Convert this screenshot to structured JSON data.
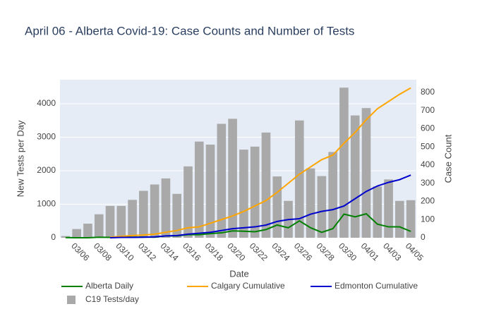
{
  "chart_data": {
    "type": "bar",
    "title": "April 06 - Alberta Covid-19: Case Counts and Number of Tests",
    "x_label": "Date",
    "y_label": "New Tests per Day",
    "y2_label": "Case Count",
    "categories": [
      null,
      "03/06",
      null,
      "03/08",
      null,
      "03/10",
      null,
      "03/12",
      null,
      "03/14",
      null,
      "03/16",
      null,
      "03/18",
      null,
      "03/20",
      null,
      "03/22",
      null,
      "03/24",
      null,
      "03/26",
      null,
      "03/28",
      null,
      "03/30",
      null,
      "04/01",
      null,
      "04/03",
      null,
      "04/05"
    ],
    "series": [
      {
        "name": "Alberta Daily",
        "type": "line",
        "axis": "y2",
        "color": "#008000",
        "values": [
          1,
          0,
          0,
          3,
          2,
          5,
          3,
          4,
          3,
          10,
          10,
          17,
          17,
          23,
          27,
          38,
          36,
          33,
          45,
          70,
          55,
          93,
          55,
          30,
          50,
          130,
          115,
          132,
          75,
          60,
          60,
          35
        ]
      },
      {
        "name": "Calgary Cumulative",
        "type": "line",
        "axis": "y2",
        "color": "#ffa500",
        "values": [
          null,
          null,
          null,
          null,
          3,
          8,
          12,
          15,
          20,
          30,
          40,
          55,
          60,
          80,
          100,
          120,
          145,
          175,
          205,
          250,
          300,
          350,
          390,
          430,
          455,
          520,
          580,
          650,
          710,
          750,
          790,
          825
        ]
      },
      {
        "name": "Edmonton Cumulative",
        "type": "line",
        "axis": "y2",
        "color": "#0000cd",
        "values": [
          null,
          null,
          null,
          null,
          0,
          2,
          2,
          3,
          5,
          10,
          12,
          20,
          25,
          30,
          40,
          50,
          55,
          60,
          70,
          90,
          100,
          105,
          130,
          145,
          155,
          175,
          215,
          255,
          285,
          305,
          320,
          345
        ]
      },
      {
        "name": "C19 Tests/day",
        "type": "bar",
        "axis": "y",
        "color": "#a9a9a9",
        "values": [
          50,
          260,
          420,
          700,
          950,
          950,
          1130,
          1400,
          1590,
          1770,
          1310,
          2130,
          2870,
          2780,
          3400,
          3550,
          2630,
          2720,
          3140,
          1830,
          1100,
          3500,
          2070,
          1840,
          2560,
          4480,
          3650,
          3870,
          1530,
          1740,
          1100,
          1120
        ]
      }
    ],
    "ylim": [
      0,
      4716
    ],
    "yticks": [
      0,
      1000,
      2000,
      3000,
      4000
    ],
    "y2lim": [
      0,
      870
    ],
    "y2ticks": [
      0,
      100,
      200,
      300,
      400,
      500,
      600,
      700,
      800
    ],
    "grid": true,
    "legend": "bottom"
  }
}
